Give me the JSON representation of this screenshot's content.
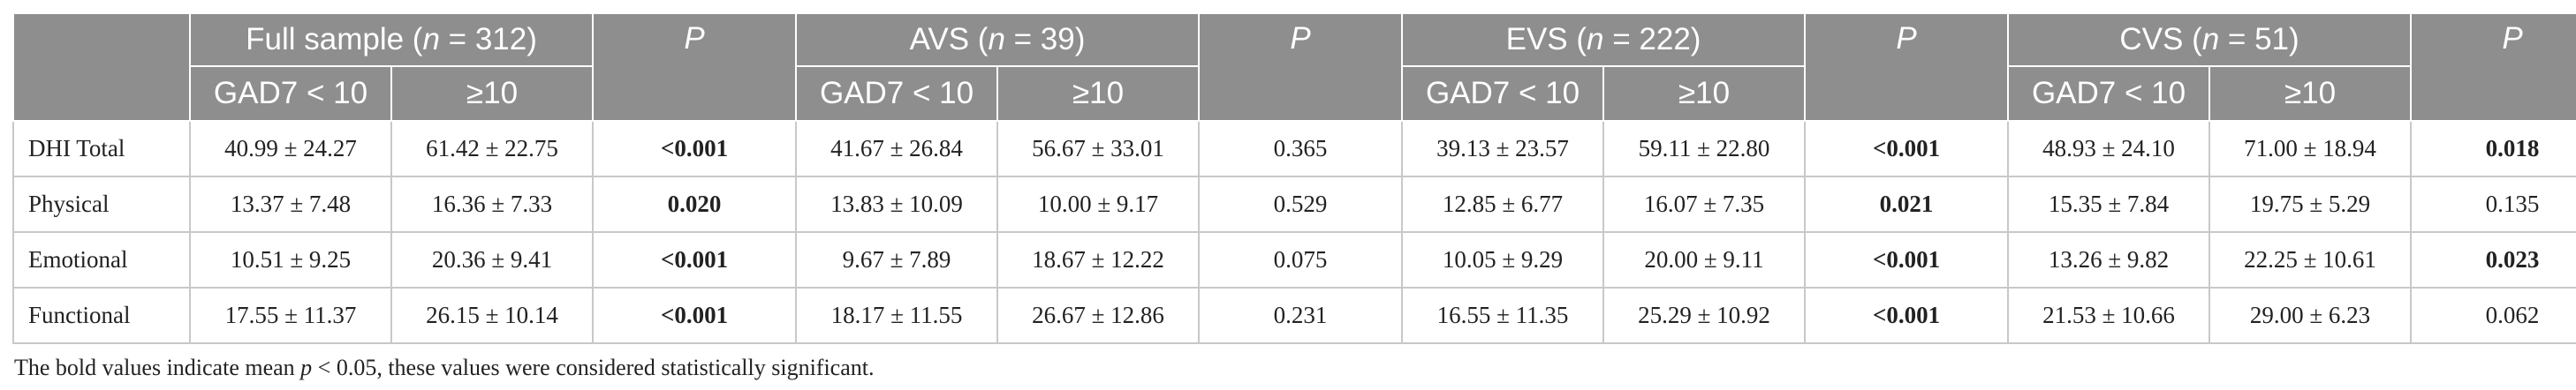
{
  "header": {
    "groups": [
      {
        "name": "Full sample",
        "n_label": "n",
        "n_rest": " = 312)",
        "open": " ("
      },
      {
        "name": "AVS",
        "n_label": "n",
        "n_rest": " = 39)",
        "open": " ("
      },
      {
        "name": "EVS",
        "n_label": "n",
        "n_rest": " = 222)",
        "open": " ("
      },
      {
        "name": "CVS",
        "n_label": "n",
        "n_rest": " = 51)",
        "open": " ("
      }
    ],
    "p_label": "P",
    "low_label": "GAD7 < 10",
    "high_label": "≥10"
  },
  "rows": [
    {
      "label": "DHI Total",
      "cells": [
        {
          "v": "40.99 ± 24.27"
        },
        {
          "v": "61.42 ± 22.75"
        },
        {
          "v": "<0.001",
          "sig": true
        },
        {
          "v": "41.67 ± 26.84"
        },
        {
          "v": "56.67 ± 33.01"
        },
        {
          "v": "0.365",
          "sig": false
        },
        {
          "v": "39.13 ± 23.57"
        },
        {
          "v": "59.11 ± 22.80"
        },
        {
          "v": "<0.001",
          "sig": true
        },
        {
          "v": "48.93 ± 24.10"
        },
        {
          "v": "71.00 ± 18.94"
        },
        {
          "v": "0.018",
          "sig": true
        }
      ]
    },
    {
      "label": "Physical",
      "cells": [
        {
          "v": "13.37 ± 7.48"
        },
        {
          "v": "16.36 ± 7.33"
        },
        {
          "v": "0.020",
          "sig": true
        },
        {
          "v": "13.83 ± 10.09"
        },
        {
          "v": "10.00 ± 9.17"
        },
        {
          "v": "0.529",
          "sig": false
        },
        {
          "v": "12.85 ± 6.77"
        },
        {
          "v": "16.07 ± 7.35"
        },
        {
          "v": "0.021",
          "sig": true
        },
        {
          "v": "15.35 ± 7.84"
        },
        {
          "v": "19.75 ± 5.29"
        },
        {
          "v": "0.135",
          "sig": false
        }
      ]
    },
    {
      "label": "Emotional",
      "cells": [
        {
          "v": "10.51 ± 9.25"
        },
        {
          "v": "20.36 ± 9.41"
        },
        {
          "v": "<0.001",
          "sig": true
        },
        {
          "v": "9.67 ± 7.89"
        },
        {
          "v": "18.67 ± 12.22"
        },
        {
          "v": "0.075",
          "sig": false
        },
        {
          "v": "10.05 ± 9.29"
        },
        {
          "v": "20.00 ± 9.11"
        },
        {
          "v": "<0.001",
          "sig": true
        },
        {
          "v": "13.26 ± 9.82"
        },
        {
          "v": "22.25 ± 10.61"
        },
        {
          "v": "0.023",
          "sig": true
        }
      ]
    },
    {
      "label": "Functional",
      "cells": [
        {
          "v": "17.55 ± 11.37"
        },
        {
          "v": "26.15 ± 10.14"
        },
        {
          "v": "<0.001",
          "sig": true
        },
        {
          "v": "18.17 ± 11.55"
        },
        {
          "v": "26.67 ± 12.86"
        },
        {
          "v": "0.231",
          "sig": false
        },
        {
          "v": "16.55 ± 11.35"
        },
        {
          "v": "25.29 ± 10.92"
        },
        {
          "v": "<0.001",
          "sig": true
        },
        {
          "v": "21.53 ± 10.66"
        },
        {
          "v": "29.00 ± 6.23"
        },
        {
          "v": "0.062",
          "sig": false
        }
      ]
    }
  ],
  "footnote": {
    "before": "The bold values indicate mean ",
    "italic": "p",
    "after": " < 0.05, these values were considered statistically significant."
  }
}
